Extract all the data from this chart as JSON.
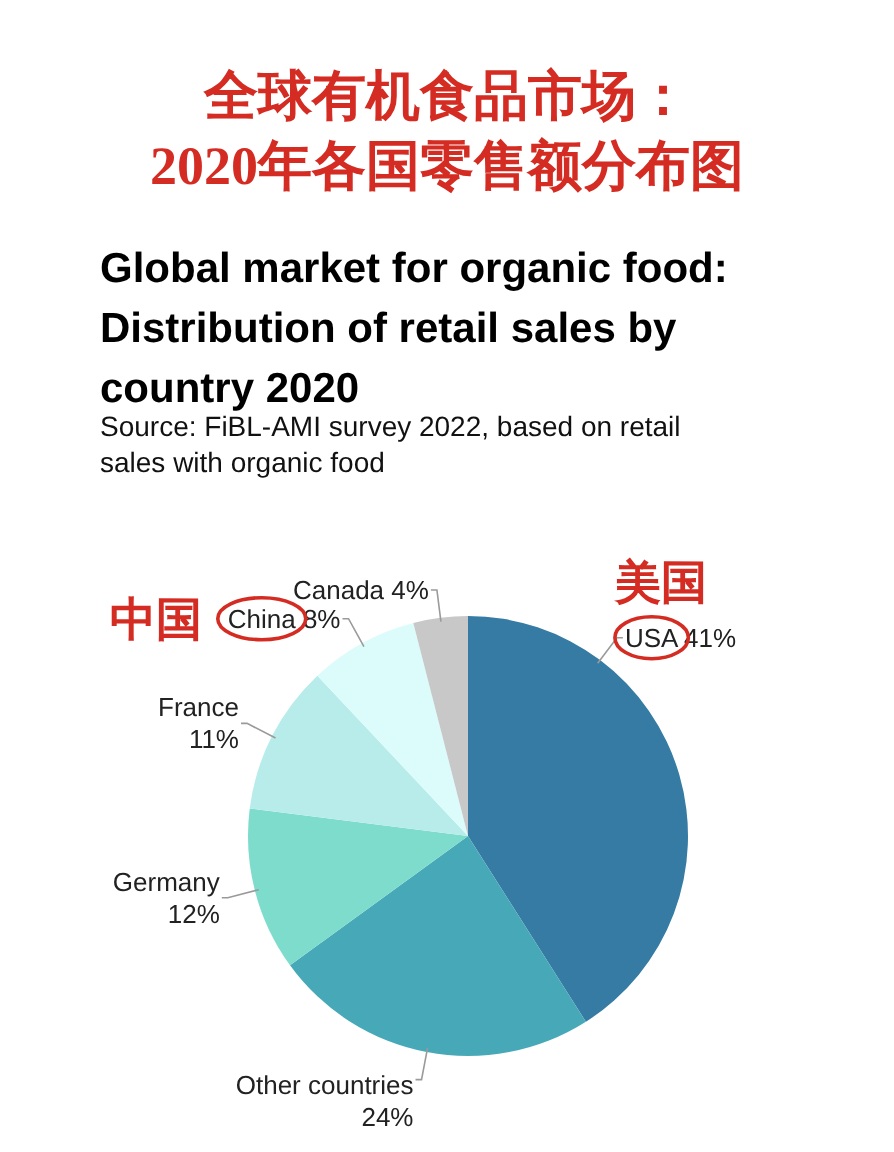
{
  "chart_data": {
    "type": "pie",
    "title": "全球有机食品市场：\n2020年各国零售额分布图",
    "subtitle": "Global market for organic food:\nDistribution of retail sales by\ncountry 2020",
    "annotations": [
      "Source: FiBL-AMI survey 2022, based on retail\nsales with organic food",
      {
        "text": "中国",
        "x": "China"
      },
      {
        "text": "美国",
        "x": "USA"
      }
    ],
    "categories": [
      "USA",
      "Other countries",
      "Germany",
      "France",
      "China",
      "Canada"
    ],
    "values": [
      41,
      24,
      12,
      11,
      8,
      4
    ],
    "colors": [
      "#367ba3",
      "#47a9b8",
      "#7ddccb",
      "#b7ecea",
      "#dcfcfc",
      "#c8c8c8"
    ],
    "value_labels": [
      "41%",
      "24%",
      "12%",
      "11%",
      "8%",
      "4%"
    ]
  }
}
